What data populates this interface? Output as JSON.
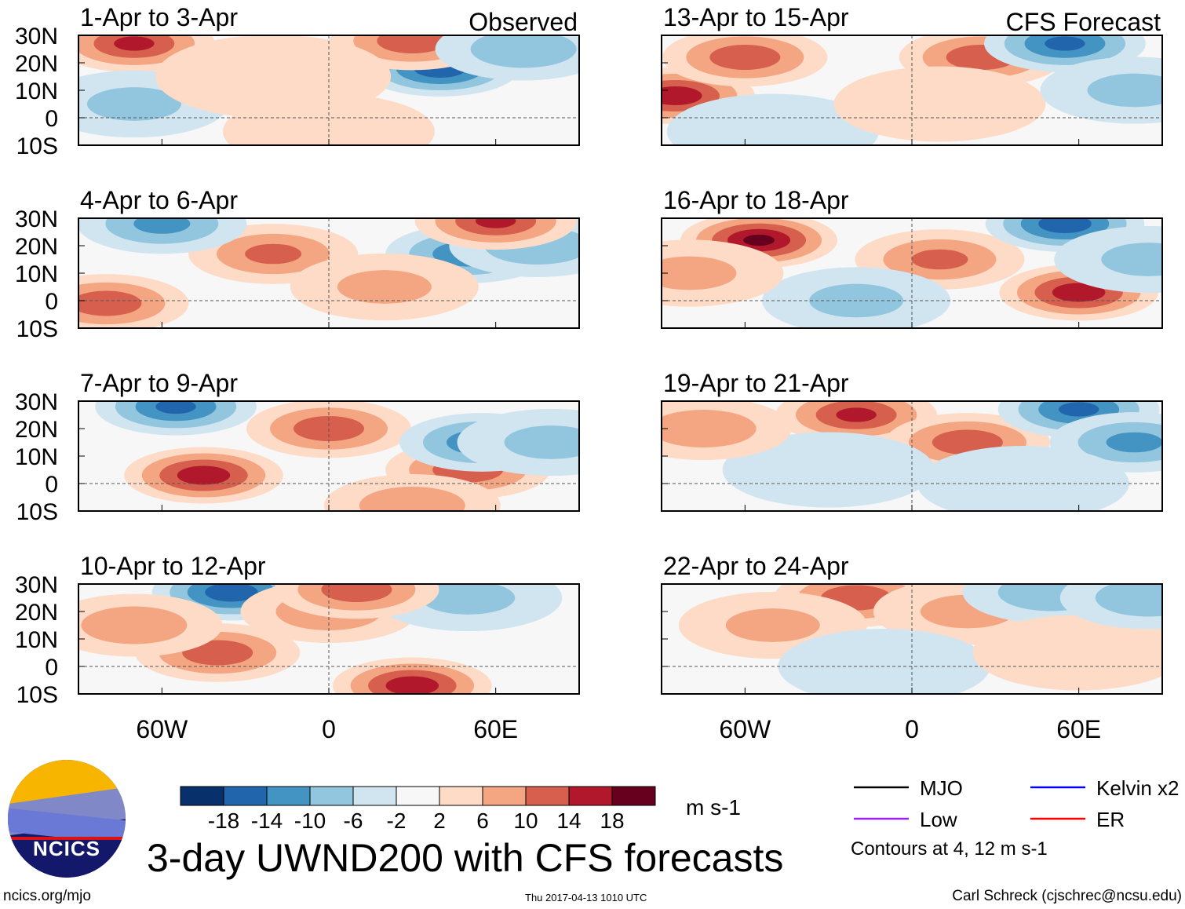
{
  "title": "3-day UWND200 with CFS forecasts",
  "footer": {
    "left": "ncics.org/mjo",
    "center": "Thu 2017-04-13 1010 UTC",
    "right": "Carl Schreck (cjschrec@ncsu.edu)"
  },
  "logo_text": "NCICS",
  "labels": {
    "observed": "Observed",
    "forecast": "CFS Forecast"
  },
  "colorbar": {
    "colors": [
      "#08306b",
      "#2166ac",
      "#4393c3",
      "#92c5de",
      "#d1e5f0",
      "#f7f7f7",
      "#fddbc7",
      "#f4a582",
      "#d6604d",
      "#b2182b",
      "#67001f"
    ],
    "ticks": [
      "-18",
      "-14",
      "-10",
      "-6",
      "-2",
      "2",
      "6",
      "10",
      "14",
      "18"
    ],
    "units": "m s-1"
  },
  "legend": {
    "items": [
      {
        "label": "MJO",
        "color": "#000000"
      },
      {
        "label": "Kelvin x2",
        "color": "#0000ff"
      },
      {
        "label": "Low",
        "color": "#a020f0"
      },
      {
        "label": "ER",
        "color": "#ff0000"
      }
    ],
    "note": "Contours at 4, 12 m s-1"
  },
  "chart_data": {
    "type": "heatmap",
    "lat_ticks": [
      "30N",
      "20N",
      "10N",
      "0",
      "10S"
    ],
    "lon_ticks": [
      "60W",
      "0",
      "60E"
    ],
    "lon_range": [
      -90,
      90
    ],
    "lat_range": [
      -10,
      30
    ],
    "panels": [
      {
        "title": "1-Apr to 3-Apr",
        "column": "observed",
        "features": [
          [
            -70,
            27,
            14
          ],
          [
            40,
            18,
            -16
          ],
          [
            30,
            28,
            12
          ],
          [
            -70,
            5,
            -6
          ],
          [
            -20,
            15,
            3
          ],
          [
            70,
            25,
            -8
          ],
          [
            0,
            -5,
            4
          ]
        ]
      },
      {
        "title": "4-Apr to 6-Apr",
        "column": "observed",
        "features": [
          [
            -20,
            17,
            10
          ],
          [
            50,
            17,
            -12
          ],
          [
            -60,
            28,
            -10
          ],
          [
            -80,
            -1,
            12
          ],
          [
            20,
            5,
            6
          ],
          [
            75,
            20,
            -8
          ],
          [
            60,
            29,
            14
          ]
        ]
      },
      {
        "title": "7-Apr to 9-Apr",
        "column": "observed",
        "features": [
          [
            -45,
            3,
            16
          ],
          [
            0,
            20,
            12
          ],
          [
            50,
            5,
            12
          ],
          [
            -55,
            28,
            -14
          ],
          [
            55,
            15,
            -12
          ],
          [
            30,
            -8,
            8
          ],
          [
            80,
            15,
            -6
          ]
        ]
      },
      {
        "title": "10-Apr to 12-Apr",
        "column": "observed",
        "features": [
          [
            -40,
            5,
            12
          ],
          [
            -35,
            27,
            -16
          ],
          [
            30,
            -7,
            16
          ],
          [
            0,
            20,
            8
          ],
          [
            -70,
            15,
            8
          ],
          [
            50,
            25,
            -6
          ],
          [
            10,
            28,
            12
          ]
        ]
      },
      {
        "title": "13-Apr to 15-Apr",
        "column": "forecast",
        "features": [
          [
            -85,
            8,
            16
          ],
          [
            -60,
            22,
            12
          ],
          [
            25,
            22,
            12
          ],
          [
            55,
            27,
            -14
          ],
          [
            -50,
            -5,
            -4
          ],
          [
            10,
            5,
            4
          ],
          [
            80,
            10,
            -6
          ]
        ]
      },
      {
        "title": "16-Apr to 18-Apr",
        "column": "forecast",
        "features": [
          [
            -55,
            22,
            18
          ],
          [
            10,
            15,
            10
          ],
          [
            60,
            3,
            16
          ],
          [
            55,
            28,
            -16
          ],
          [
            -20,
            0,
            -6
          ],
          [
            -80,
            10,
            6
          ],
          [
            85,
            15,
            -6
          ]
        ]
      },
      {
        "title": "19-Apr to 21-Apr",
        "column": "forecast",
        "features": [
          [
            -20,
            25,
            14
          ],
          [
            20,
            15,
            12
          ],
          [
            60,
            27,
            -14
          ],
          [
            80,
            15,
            -10
          ],
          [
            -30,
            5,
            -4
          ],
          [
            -75,
            20,
            8
          ],
          [
            40,
            0,
            -4
          ]
        ]
      },
      {
        "title": "22-Apr to 24-Apr",
        "column": "forecast",
        "features": [
          [
            -20,
            25,
            12
          ],
          [
            20,
            20,
            6
          ],
          [
            -50,
            15,
            6
          ],
          [
            50,
            27,
            -8
          ],
          [
            -10,
            0,
            -4
          ],
          [
            60,
            5,
            4
          ],
          [
            85,
            25,
            -8
          ]
        ]
      }
    ]
  }
}
